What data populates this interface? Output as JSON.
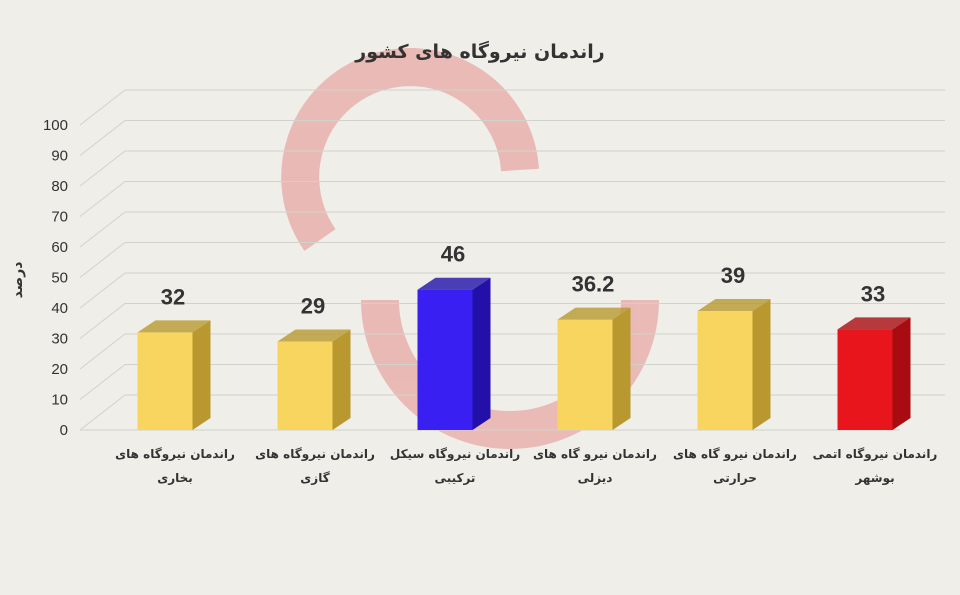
{
  "chart_data": {
    "type": "bar",
    "title": "راندمان نیروگاه های کشور",
    "ylabel": "درصد",
    "xlabel": "",
    "ylim": [
      0,
      100
    ],
    "yticks": [
      0,
      10,
      20,
      30,
      40,
      50,
      60,
      70,
      80,
      90,
      100
    ],
    "grid": true,
    "style": "3d",
    "categories": [
      [
        "راندمان نیروگاه های",
        "بخاری"
      ],
      [
        "راندمان نیروگاه های",
        "گازی"
      ],
      [
        "راندمان نیروگاه سیکل",
        "ترکیبی"
      ],
      [
        "راندمان نیرو گاه های",
        "دیزلی"
      ],
      [
        "راندمان نیرو گاه های",
        "حرارتی"
      ],
      [
        "راندمان نیروگاه اتمی",
        "بوشهر"
      ]
    ],
    "values": [
      32,
      29,
      46,
      36.2,
      39,
      33
    ],
    "data_labels": [
      "32",
      "29",
      "46",
      "36.2",
      "39",
      "33"
    ],
    "colors": [
      "#f8d55e",
      "#f8d55e",
      "#3a1ff2",
      "#f8d55e",
      "#f8d55e",
      "#e8161c"
    ],
    "side_colors": [
      "#b8982f",
      "#b8982f",
      "#2210a8",
      "#b8982f",
      "#b8982f",
      "#a80c10"
    ]
  }
}
